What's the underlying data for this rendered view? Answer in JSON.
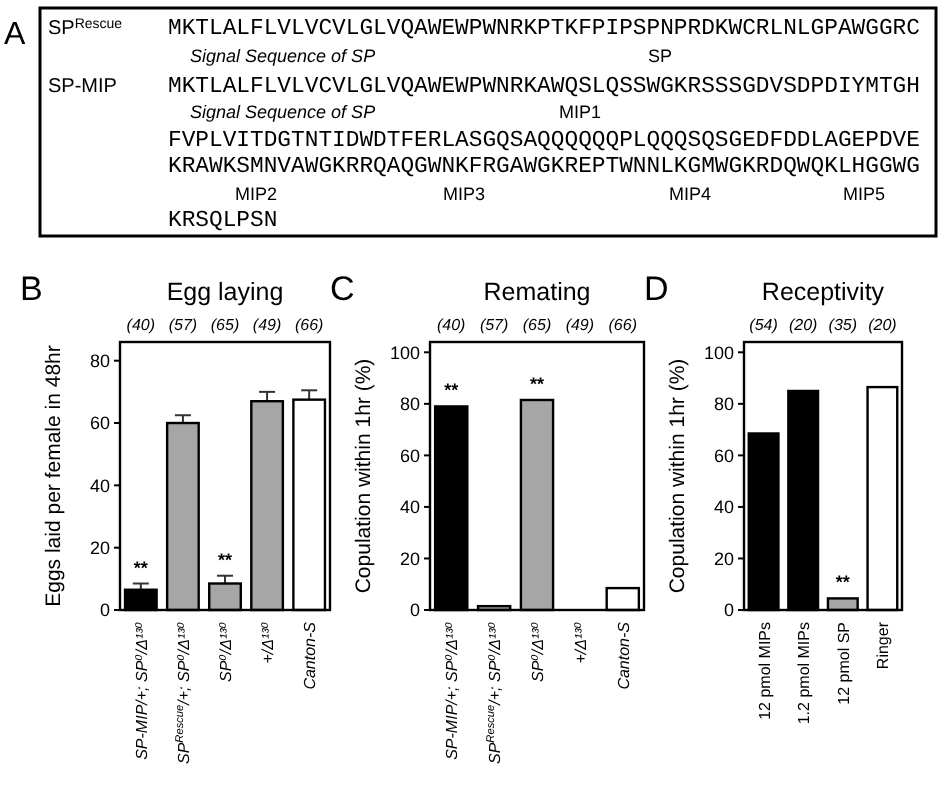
{
  "chart_data": [
    {
      "type": "other",
      "annotations": [
        "A",
        "SP$^{Rescue}$",
        "MKTLALFLVLVCVLGLVQAWEWPWNRKPTKFPIPSPNPRDKWCRLNLGPAWGGRC",
        "Signal Sequence of SP",
        "SP",
        "SP-MIP",
        "MKTLALFLVLVCVLGLVQAWEWPWNRKAWQSLQSSWGKRSSSGDVSDPDIYMTGH",
        "Signal Sequence of SP",
        "MIP1",
        "FVPLVITDGTNTIDWDTFERLASGQSAQQQQQQPLQQQSQSGEDFDDLAGEPDVE",
        "KRAWKSMNVAWGKRRQAQGWNKFRGAWGKREPTWNNLKGMWGKRDQWQKLHGGWG",
        "MIP2",
        "MIP3",
        "MIP4",
        "MIP5",
        "KRSQLPSN"
      ]
    },
    {
      "type": "bar",
      "title": "Egg laying",
      "ylabel": "Eggs laid per female in 48hr",
      "categories": [
        "SP-MIP/+; SP⁰/Δ¹³⁰",
        "SP$^{Rescue}$/+; SP⁰/Δ¹³⁰",
        "SP⁰/Δ¹³⁰",
        "+/Δ¹³⁰",
        "Canton-S"
      ],
      "values": [
        6.5,
        60,
        8.5,
        67,
        67.5
      ],
      "errors": [
        2,
        2.5,
        2.5,
        3,
        3
      ],
      "colors": [
        "#000000",
        "#a6a6a6",
        "#a6a6a6",
        "#a6a6a6",
        "#ffffff"
      ],
      "ylim": [
        0,
        86
      ],
      "yticks": [
        0,
        20,
        40,
        60,
        80
      ],
      "grid": false,
      "annotations": [
        "B",
        "(40)",
        "(57)",
        "(65)",
        "(49)",
        "(66)",
        {
          "text": "**",
          "x": "SP-MIP/+; SP⁰/Δ¹³⁰",
          "y": 8.5
        },
        {
          "text": "**",
          "x": "SP⁰/Δ¹³⁰",
          "y": 11
        }
      ]
    },
    {
      "type": "bar",
      "title": "Remating",
      "ylabel": "Copulation within 1hr (%)",
      "categories": [
        "SP-MIP/+; SP⁰/Δ¹³⁰",
        "SP$^{Rescue}$/+; SP⁰/Δ¹³⁰",
        "SP⁰/Δ¹³⁰",
        "+/Δ¹³⁰",
        "Canton-S"
      ],
      "values": [
        79,
        1.5,
        81.5,
        0,
        8.5
      ],
      "colors": [
        "#000000",
        "#a6a6a6",
        "#a6a6a6",
        "#a6a6a6",
        "#ffffff"
      ],
      "ylim": [
        0,
        104
      ],
      "yticks": [
        0,
        20,
        40,
        60,
        80,
        100
      ],
      "grid": false,
      "annotations": [
        "C",
        "(40)",
        "(57)",
        "(65)",
        "(49)",
        "(66)",
        {
          "text": "**",
          "x": "SP-MIP/+; SP⁰/Δ¹³⁰",
          "y": 79
        },
        {
          "text": "**",
          "x": "SP⁰/Δ¹³⁰",
          "y": 81.5
        }
      ]
    },
    {
      "type": "bar",
      "title": "Receptivity",
      "ylabel": "Copulation within 1hr (%)",
      "categories": [
        "12 pmol MIPs",
        "1.2 pmol MIPs",
        "12 pmol SP",
        "Ringer"
      ],
      "values": [
        68.5,
        85,
        4.5,
        86.5
      ],
      "colors": [
        "#000000",
        "#000000",
        "#a6a6a6",
        "#ffffff"
      ],
      "ylim": [
        0,
        104
      ],
      "yticks": [
        0,
        20,
        40,
        60,
        80,
        100
      ],
      "grid": false,
      "annotations": [
        "D",
        "(54)",
        "(20)",
        "(35)",
        "(20)",
        {
          "text": "**",
          "x": "12 pmol SP",
          "y": 4.5
        }
      ]
    }
  ]
}
